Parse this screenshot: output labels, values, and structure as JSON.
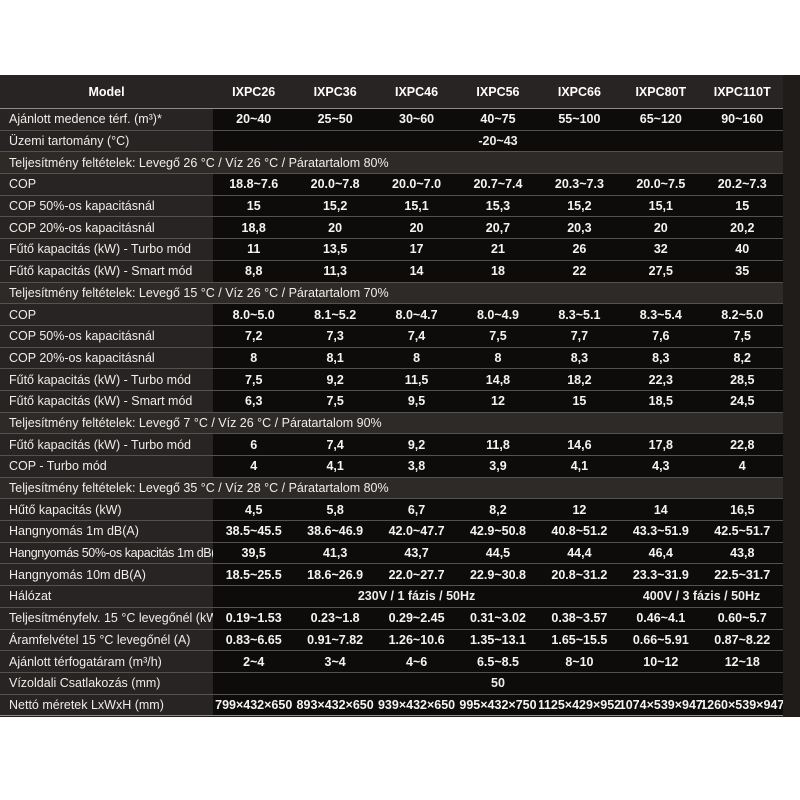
{
  "colors": {
    "page_bg": "#ffffff",
    "table_bg": "#1f1c1a",
    "label_bg": "#282423",
    "data_bg": "#0e0c0b",
    "section_bg": "#2e2a28",
    "text": "#efedea",
    "divider": "#55514e"
  },
  "table": {
    "header": {
      "model_label": "Model",
      "columns": [
        "IXPC26",
        "IXPC36",
        "IXPC46",
        "IXPC56",
        "IXPC66",
        "IXPC80T",
        "IXPC110T"
      ]
    },
    "rows": [
      {
        "type": "data",
        "label": "Ajánlott medence térf. (m³)*",
        "values": [
          "20~40",
          "25~50",
          "30~60",
          "40~75",
          "55~100",
          "65~120",
          "90~160"
        ]
      },
      {
        "type": "span",
        "label": "Üzemi tartomány (°C)",
        "value": "-20~43"
      },
      {
        "type": "section",
        "label": "Teljesítmény feltételek: Levegő 26 °C / Víz 26 °C / Páratartalom 80%"
      },
      {
        "type": "data",
        "label": "COP",
        "values": [
          "18.8~7.6",
          "20.0~7.8",
          "20.0~7.0",
          "20.7~7.4",
          "20.3~7.3",
          "20.0~7.5",
          "20.2~7.3"
        ]
      },
      {
        "type": "data",
        "label": "COP 50%-os kapacitásnál",
        "values": [
          "15",
          "15,2",
          "15,1",
          "15,3",
          "15,2",
          "15,1",
          "15"
        ]
      },
      {
        "type": "data",
        "label": "COP 20%-os kapacitásnál",
        "values": [
          "18,8",
          "20",
          "20",
          "20,7",
          "20,3",
          "20",
          "20,2"
        ]
      },
      {
        "type": "data",
        "label": "Fűtő kapacitás (kW) - Turbo mód",
        "values": [
          "11",
          "13,5",
          "17",
          "21",
          "26",
          "32",
          "40"
        ]
      },
      {
        "type": "data",
        "label": "Fűtő kapacitás (kW) - Smart mód",
        "values": [
          "8,8",
          "11,3",
          "14",
          "18",
          "22",
          "27,5",
          "35"
        ]
      },
      {
        "type": "section",
        "label": "Teljesítmény feltételek: Levegő 15 °C / Víz 26 °C / Páratartalom 70%"
      },
      {
        "type": "data",
        "label": "COP",
        "values": [
          "8.0~5.0",
          "8.1~5.2",
          "8.0~4.7",
          "8.0~4.9",
          "8.3~5.1",
          "8.3~5.4",
          "8.2~5.0"
        ]
      },
      {
        "type": "data",
        "label": "COP 50%-os kapacitásnál",
        "values": [
          "7,2",
          "7,3",
          "7,4",
          "7,5",
          "7,7",
          "7,6",
          "7,5"
        ]
      },
      {
        "type": "data",
        "label": "COP 20%-os kapacitásnál",
        "values": [
          "8",
          "8,1",
          "8",
          "8",
          "8,3",
          "8,3",
          "8,2"
        ]
      },
      {
        "type": "data",
        "label": "Fűtő kapacitás (kW) - Turbo mód",
        "values": [
          "7,5",
          "9,2",
          "11,5",
          "14,8",
          "18,2",
          "22,3",
          "28,5"
        ]
      },
      {
        "type": "data",
        "label": "Fűtő kapacitás (kW) - Smart mód",
        "values": [
          "6,3",
          "7,5",
          "9,5",
          "12",
          "15",
          "18,5",
          "24,5"
        ]
      },
      {
        "type": "section",
        "label": "Teljesítmény feltételek: Levegő 7 °C / Víz 26 °C / Páratartalom 90%"
      },
      {
        "type": "data",
        "label": "Fűtő kapacitás (kW) - Turbo mód",
        "values": [
          "6",
          "7,4",
          "9,2",
          "11,8",
          "14,6",
          "17,8",
          "22,8"
        ]
      },
      {
        "type": "data",
        "label": "COP - Turbo mód",
        "values": [
          "4",
          "4,1",
          "3,8",
          "3,9",
          "4,1",
          "4,3",
          "4"
        ]
      },
      {
        "type": "section",
        "label": "Teljesítmény feltételek: Levegő 35 °C / Víz 28 °C / Páratartalom 80%"
      },
      {
        "type": "data",
        "label": "Hűtő kapacitás (kW)",
        "values": [
          "4,5",
          "5,8",
          "6,7",
          "8,2",
          "12",
          "14",
          "16,5"
        ]
      },
      {
        "type": "data",
        "label": "Hangnyomás 1m dB(A)",
        "values": [
          "38.5~45.5",
          "38.6~46.9",
          "42.0~47.7",
          "42.9~50.8",
          "40.8~51.2",
          "43.3~51.9",
          "42.5~51.7"
        ]
      },
      {
        "type": "data",
        "label": "Hangnyomás 50%-os kapacitás 1m dB(A)",
        "condensed": true,
        "values": [
          "39,5",
          "41,3",
          "43,7",
          "44,5",
          "44,4",
          "46,4",
          "43,8"
        ]
      },
      {
        "type": "data",
        "label": "Hangnyomás 10m dB(A)",
        "values": [
          "18.5~25.5",
          "18.6~26.9",
          "22.0~27.7",
          "22.9~30.8",
          "20.8~31.2",
          "23.3~31.9",
          "22.5~31.7"
        ]
      },
      {
        "type": "split",
        "label": "Hálózat",
        "values": [
          {
            "span": 5,
            "value": "230V / 1 fázis / 50Hz"
          },
          {
            "span": 2,
            "value": "400V / 3 fázis / 50Hz"
          }
        ]
      },
      {
        "type": "data",
        "label": "Teljesítményfelv. 15 °C levegőnél (kW)",
        "values": [
          "0.19~1.53",
          "0.23~1.8",
          "0.29~2.45",
          "0.31~3.02",
          "0.38~3.57",
          "0.46~4.1",
          "0.60~5.7"
        ]
      },
      {
        "type": "data",
        "label": "Áramfelvétel 15 °C levegőnél (A)",
        "values": [
          "0.83~6.65",
          "0.91~7.82",
          "1.26~10.6",
          "1.35~13.1",
          "1.65~15.5",
          "0.66~5.91",
          "0.87~8.22"
        ]
      },
      {
        "type": "data",
        "label": "Ajánlott térfogatáram (m³/h)",
        "values": [
          "2~4",
          "3~4",
          "4~6",
          "6.5~8.5",
          "8~10",
          "10~12",
          "12~18"
        ]
      },
      {
        "type": "span",
        "label": "Vízoldali Csatlakozás (mm)",
        "value": "50"
      },
      {
        "type": "data",
        "label": "Nettó méretek LxWxH (mm)",
        "values": [
          "799×432×650",
          "893×432×650",
          "939×432×650",
          "995×432×750",
          "1125×429×952",
          "1074×539×947",
          "1260×539×947"
        ]
      }
    ]
  }
}
